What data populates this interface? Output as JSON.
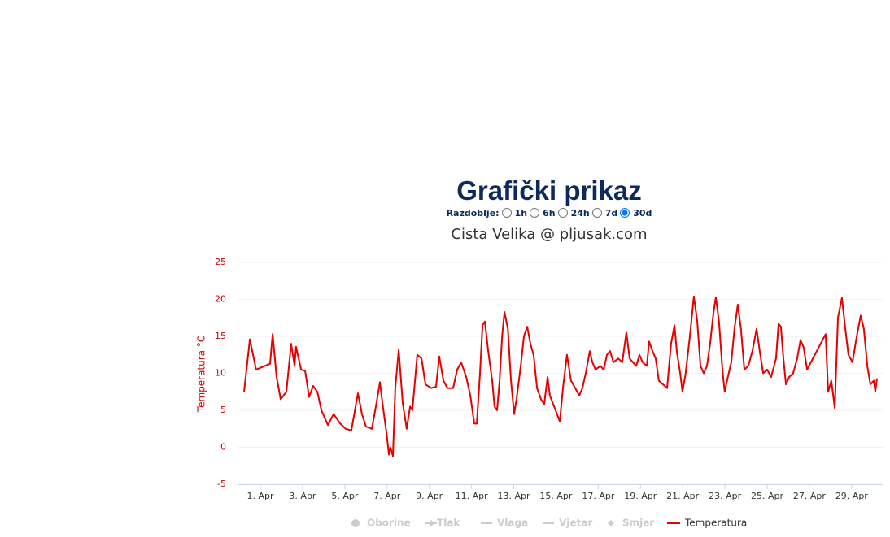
{
  "header": {
    "title": "Grafički prikaz",
    "period_label": "Razdoblje:",
    "periods": [
      "1h",
      "6h",
      "24h",
      "7d",
      "30d"
    ],
    "selected_period": 4
  },
  "chart_data": {
    "type": "line",
    "title": "Cista Velika @ pljusak.com",
    "y_label": "Temperatura °C",
    "xlim": [
      -0.08,
      30.47
    ],
    "ylim": [
      -5,
      25
    ],
    "yticks": [
      -5,
      0,
      5,
      10,
      15,
      20,
      25
    ],
    "grid": true,
    "xticks": [
      {
        "value": 1,
        "label": "1. Apr"
      },
      {
        "value": 3,
        "label": "3. Apr"
      },
      {
        "value": 5,
        "label": "5. Apr"
      },
      {
        "value": 7,
        "label": "7. Apr"
      },
      {
        "value": 9,
        "label": "9. Apr"
      },
      {
        "value": 11,
        "label": "11. Apr"
      },
      {
        "value": 13,
        "label": "13. Apr"
      },
      {
        "value": 15,
        "label": "15. Apr"
      },
      {
        "value": 17,
        "label": "17. Apr"
      },
      {
        "value": 19,
        "label": "19. Apr"
      },
      {
        "value": 21,
        "label": "21. Apr"
      },
      {
        "value": 23,
        "label": "23. Apr"
      },
      {
        "value": 25,
        "label": "25. Apr"
      },
      {
        "value": 27,
        "label": "27. Apr"
      },
      {
        "value": 29,
        "label": "29. Apr"
      }
    ],
    "hidden_series": [
      "Oborine",
      "Tlak",
      "Vlaga",
      "Vjetar",
      "Smjer"
    ],
    "series": [
      {
        "name": "Temperatura",
        "color": "#e60000",
        "x": [
          0.23,
          0.5,
          0.8,
          1.46,
          1.58,
          1.77,
          1.96,
          2.23,
          2.46,
          2.62,
          2.69,
          2.93,
          3.12,
          3.31,
          3.5,
          3.7,
          3.89,
          4.2,
          4.47,
          4.78,
          5.04,
          5.31,
          5.62,
          5.81,
          6.0,
          6.28,
          6.47,
          6.66,
          6.78,
          6.97,
          7.09,
          7.16,
          7.28,
          7.39,
          7.55,
          7.74,
          7.93,
          8.09,
          8.2,
          8.43,
          8.63,
          8.82,
          9.09,
          9.32,
          9.47,
          9.67,
          9.86,
          10.13,
          10.32,
          10.51,
          10.75,
          10.94,
          11.13,
          11.25,
          11.4,
          11.52,
          11.63,
          11.79,
          11.98,
          12.09,
          12.21,
          12.33,
          12.45,
          12.56,
          12.72,
          12.87,
          13.02,
          13.13,
          13.33,
          13.48,
          13.64,
          13.79,
          13.94,
          14.1,
          14.29,
          14.44,
          14.6,
          14.71,
          14.98,
          15.18,
          15.33,
          15.52,
          15.71,
          15.91,
          16.1,
          16.25,
          16.41,
          16.6,
          16.72,
          16.87,
          17.1,
          17.26,
          17.41,
          17.56,
          17.72,
          17.95,
          18.14,
          18.33,
          18.49,
          18.64,
          18.8,
          18.95,
          19.1,
          19.3,
          19.41,
          19.57,
          19.72,
          19.87,
          20.07,
          20.26,
          20.45,
          20.61,
          20.72,
          20.88,
          20.99,
          21.14,
          21.34,
          21.53,
          21.69,
          21.84,
          22.0,
          22.15,
          22.3,
          22.45,
          22.57,
          22.72,
          22.88,
          22.99,
          23.14,
          23.3,
          23.45,
          23.61,
          23.76,
          23.92,
          24.11,
          24.3,
          24.5,
          24.65,
          24.81,
          25.0,
          25.19,
          25.42,
          25.54,
          25.65,
          25.77,
          25.89,
          26.04,
          26.23,
          26.42,
          26.58,
          26.73,
          26.89,
          27.77,
          27.89,
          28.04,
          28.2,
          28.35,
          28.54,
          28.7,
          28.85,
          29.04,
          29.24,
          29.43,
          29.58,
          29.74,
          29.89,
          30.05,
          30.12,
          30.2
        ],
        "values": [
          7.5,
          14.6,
          10.5,
          11.3,
          15.3,
          9.5,
          6.5,
          7.5,
          14,
          11,
          13.6,
          10.5,
          10.3,
          6.8,
          8.3,
          7.5,
          5,
          3,
          4.5,
          3.2,
          2.5,
          2.3,
          7.3,
          4.5,
          2.8,
          2.5,
          5.5,
          8.8,
          6,
          2,
          -1,
          0,
          -1.2,
          8,
          13.2,
          6,
          2.5,
          5.5,
          5,
          12.5,
          12,
          8.5,
          8,
          8.2,
          12.3,
          9,
          8,
          8,
          10.5,
          11.5,
          9.5,
          7,
          3.2,
          3.2,
          10,
          16.5,
          17,
          13,
          9,
          5.5,
          5,
          9,
          15,
          18.3,
          16,
          9,
          4.5,
          6.5,
          11,
          15,
          16.3,
          14,
          12.5,
          8,
          6.5,
          5.8,
          9.5,
          7,
          5,
          3.5,
          8,
          12.5,
          9,
          8,
          7,
          8,
          10,
          13,
          11.5,
          10.5,
          11,
          10.5,
          12.5,
          13,
          11.5,
          12,
          11.5,
          15.5,
          12,
          11.5,
          11,
          12.5,
          11.5,
          11,
          14.3,
          13,
          12,
          9,
          8.5,
          8,
          14,
          16.5,
          13,
          10,
          7.5,
          10,
          15,
          20.4,
          17,
          11,
          10,
          11,
          14,
          18,
          20.3,
          17,
          10.5,
          7.5,
          9.5,
          11.5,
          16,
          19.3,
          16,
          10.5,
          11,
          13,
          16,
          13,
          10,
          10.5,
          9.5,
          12,
          16.7,
          16.3,
          12,
          8.5,
          9.5,
          10,
          12,
          14.5,
          13.5,
          10.5,
          15.3,
          7.5,
          9,
          5.3,
          17.5,
          20.2,
          16,
          12.5,
          11.5,
          15,
          17.8,
          16,
          11,
          8.5,
          9,
          7.5,
          9.3
        ]
      }
    ]
  }
}
